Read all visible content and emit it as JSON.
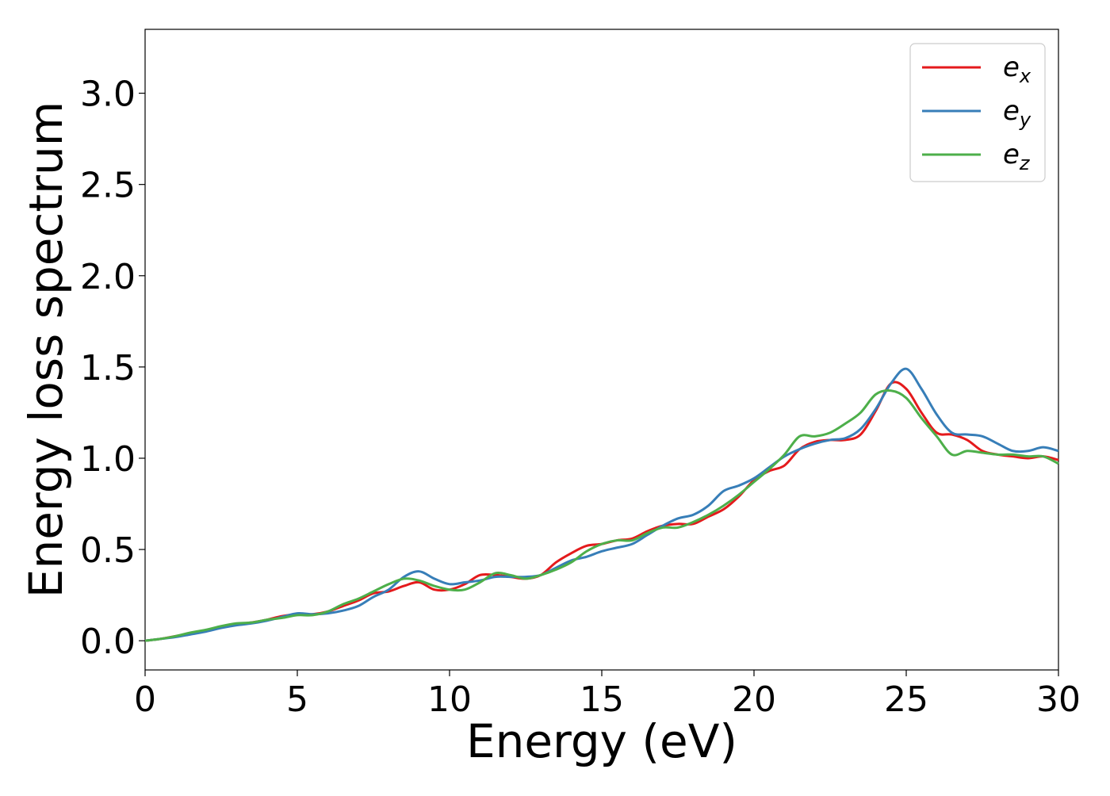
{
  "chart_data": {
    "type": "line",
    "xlabel": "Energy (eV)",
    "ylabel": "Energy loss spectrum",
    "xlim": [
      0,
      30
    ],
    "ylim": [
      -0.16,
      3.35
    ],
    "xticks": [
      "0",
      "5",
      "10",
      "15",
      "20",
      "25",
      "30"
    ],
    "yticks": [
      "0.0",
      "0.5",
      "1.0",
      "1.5",
      "2.0",
      "2.5",
      "3.0"
    ],
    "grid": false,
    "legend_position": "top-right",
    "x": [
      0,
      0.5,
      1,
      1.5,
      2,
      2.5,
      3,
      3.5,
      4,
      4.5,
      5,
      5.5,
      6,
      6.5,
      7,
      7.5,
      8,
      8.5,
      9,
      9.5,
      10,
      10.5,
      11,
      11.5,
      12,
      12.5,
      13,
      13.5,
      14,
      14.5,
      15,
      15.5,
      16,
      16.5,
      17,
      17.5,
      18,
      18.5,
      19,
      19.5,
      20,
      20.5,
      21,
      21.5,
      22,
      22.5,
      23,
      23.5,
      24,
      24.5,
      25,
      25.5,
      26,
      26.5,
      27,
      27.5,
      28,
      28.5,
      29,
      29.5,
      30
    ],
    "series": [
      {
        "name": "e_x",
        "label_base": "e",
        "label_sub": "x",
        "color": "#e41a1c",
        "values": [
          0.0,
          0.01,
          0.025,
          0.04,
          0.055,
          0.075,
          0.09,
          0.1,
          0.115,
          0.135,
          0.145,
          0.145,
          0.16,
          0.19,
          0.22,
          0.26,
          0.27,
          0.3,
          0.32,
          0.28,
          0.28,
          0.31,
          0.36,
          0.36,
          0.35,
          0.34,
          0.36,
          0.43,
          0.48,
          0.52,
          0.53,
          0.55,
          0.56,
          0.6,
          0.63,
          0.64,
          0.64,
          0.68,
          0.72,
          0.79,
          0.88,
          0.93,
          0.96,
          1.05,
          1.09,
          1.1,
          1.1,
          1.13,
          1.26,
          1.41,
          1.38,
          1.25,
          1.14,
          1.13,
          1.1,
          1.04,
          1.02,
          1.01,
          1.0,
          1.01,
          0.99
        ]
      },
      {
        "name": "e_y",
        "label_base": "e",
        "label_sub": "y",
        "color": "#377eb8",
        "values": [
          0.0,
          0.01,
          0.02,
          0.035,
          0.05,
          0.07,
          0.085,
          0.095,
          0.11,
          0.13,
          0.15,
          0.145,
          0.15,
          0.165,
          0.19,
          0.24,
          0.28,
          0.35,
          0.38,
          0.34,
          0.31,
          0.32,
          0.33,
          0.35,
          0.35,
          0.35,
          0.36,
          0.4,
          0.44,
          0.46,
          0.49,
          0.51,
          0.53,
          0.58,
          0.63,
          0.67,
          0.69,
          0.74,
          0.82,
          0.85,
          0.89,
          0.95,
          1.01,
          1.05,
          1.08,
          1.1,
          1.11,
          1.16,
          1.27,
          1.41,
          1.49,
          1.38,
          1.24,
          1.14,
          1.13,
          1.12,
          1.08,
          1.04,
          1.04,
          1.06,
          1.04
        ]
      },
      {
        "name": "e_z",
        "label_base": "e",
        "label_sub": "z",
        "color": "#4daf4a",
        "values": [
          0.0,
          0.01,
          0.025,
          0.045,
          0.06,
          0.08,
          0.095,
          0.1,
          0.115,
          0.125,
          0.14,
          0.14,
          0.16,
          0.2,
          0.23,
          0.27,
          0.31,
          0.34,
          0.33,
          0.3,
          0.28,
          0.28,
          0.32,
          0.37,
          0.36,
          0.34,
          0.36,
          0.39,
          0.43,
          0.49,
          0.53,
          0.55,
          0.55,
          0.59,
          0.62,
          0.62,
          0.65,
          0.69,
          0.74,
          0.8,
          0.87,
          0.94,
          1.02,
          1.12,
          1.12,
          1.14,
          1.19,
          1.25,
          1.35,
          1.37,
          1.33,
          1.22,
          1.12,
          1.02,
          1.04,
          1.03,
          1.02,
          1.02,
          1.01,
          1.01,
          0.97
        ]
      }
    ]
  }
}
